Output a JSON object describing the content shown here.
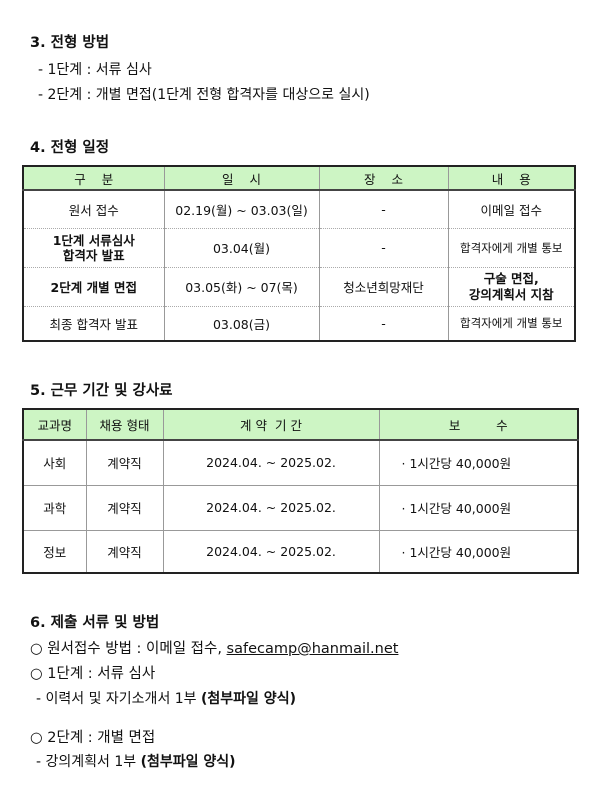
{
  "s3": {
    "heading": "3. 전형 방법",
    "lines": [
      "- 1단계 : 서류 심사",
      "- 2단계 : 개별 면접(1단계 전형 합격자를 대상으로 실시)"
    ]
  },
  "s4": {
    "heading": "4. 전형 일정",
    "headers": [
      "구    분",
      "일    시",
      "장    소",
      "내    용"
    ],
    "rows": [
      [
        "원서 접수",
        "02.19(월) ~ 03.03(일)",
        "-",
        "이메일 접수"
      ],
      [
        "1단계 서류심사\n합격자 발표",
        "03.04(월)",
        "-",
        "합격자에게 개별 통보"
      ],
      [
        "2단계 개별 면접",
        "03.05(화) ~ 07(목)",
        "청소년희망재단",
        "구술 면접,\n강의계획서 지참"
      ],
      [
        "최종 합격자 발표",
        "03.08(금)",
        "-",
        "합격자에게 개별 통보"
      ]
    ]
  },
  "s5": {
    "heading": "5. 근무 기간 및 강사료",
    "headers": [
      "교과명",
      "채용 형태",
      "계 약  기 간",
      "보         수"
    ],
    "rows": [
      [
        "사회",
        "계약직",
        "2024.04. ~ 2025.02.",
        "· 1시간당 40,000원"
      ],
      [
        "과학",
        "계약직",
        "2024.04. ~ 2025.02.",
        "· 1시간당 40,000원"
      ],
      [
        "정보",
        "계약직",
        "2024.04. ~ 2025.02.",
        "· 1시간당 40,000원"
      ]
    ]
  },
  "s6": {
    "heading": "6. 제출 서류 및 방법",
    "apply": "○ 원서접수 방법 : 이메일 접수, ",
    "email": "safecamp@hanmail.net",
    "step1": "○ 1단계 : 서류 심사",
    "step1_detail": "- 이력서 및 자기소개서 1부 ",
    "step1_note": "(첨부파일 양식)",
    "step2": "○ 2단계 : 개별 면접",
    "step2_detail": "- 강의계획서 1부 ",
    "step2_note": "(첨부파일 양식)"
  }
}
